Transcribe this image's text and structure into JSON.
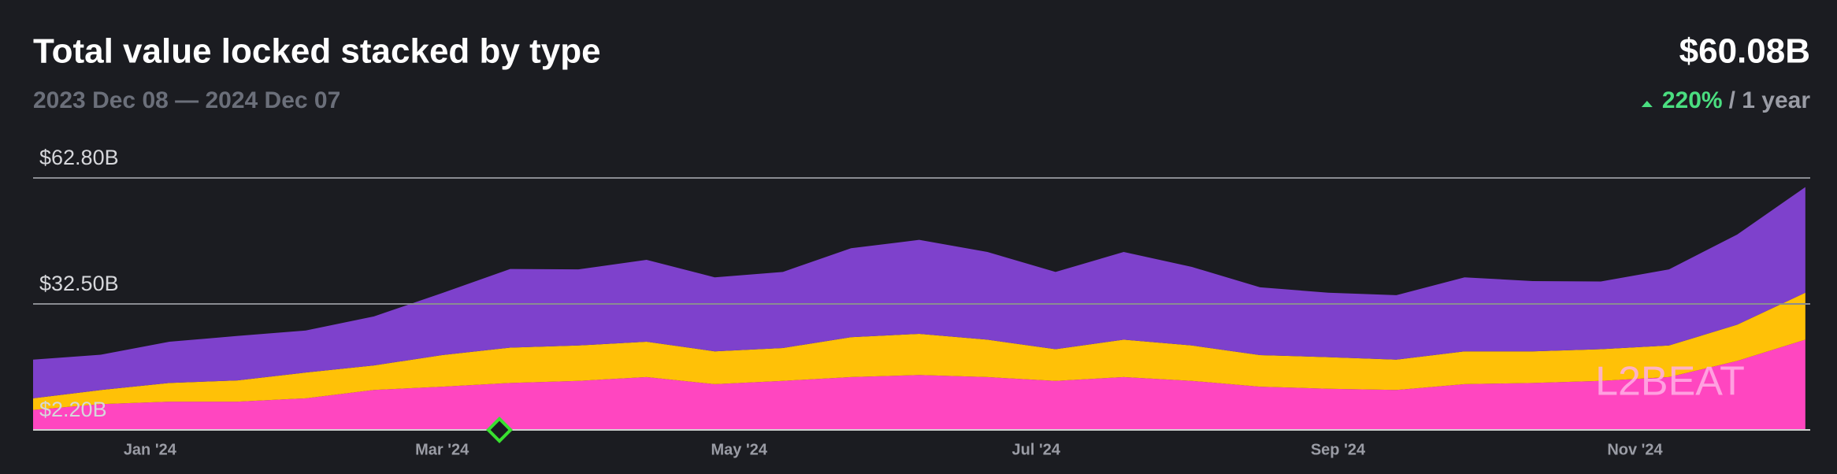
{
  "chart_data": {
    "type": "stacked_area",
    "title": "Total value locked stacked by type",
    "subtitle": "2023 Dec 08 — 2024 Dec 07",
    "total": "$60.08B",
    "change": "220%",
    "change_period": "/ 1 year",
    "watermark": "L2BEAT",
    "x": [
      "2023-12-08",
      "2023-12-22",
      "2024-01-05",
      "2024-01-19",
      "2024-02-02",
      "2024-02-16",
      "2024-03-01",
      "2024-03-15",
      "2024-03-29",
      "2024-04-12",
      "2024-04-26",
      "2024-05-10",
      "2024-05-24",
      "2024-06-07",
      "2024-06-21",
      "2024-07-05",
      "2024-07-19",
      "2024-08-02",
      "2024-08-16",
      "2024-08-30",
      "2024-09-13",
      "2024-09-27",
      "2024-10-11",
      "2024-10-25",
      "2024-11-08",
      "2024-11-22",
      "2024-12-06"
    ],
    "xlim": [
      "2023-12-08",
      "2024-12-07"
    ],
    "xticks": [
      {
        "value": "2024-01-01",
        "label": "Jan '24"
      },
      {
        "value": "2024-03-01",
        "label": "Mar '24"
      },
      {
        "value": "2024-05-01",
        "label": "May '24"
      },
      {
        "value": "2024-07-01",
        "label": "Jul '24"
      },
      {
        "value": "2024-09-01",
        "label": "Sep '24"
      },
      {
        "value": "2024-11-01",
        "label": "Nov '24"
      }
    ],
    "ylim": [
      2.2,
      62.8
    ],
    "yticks": [
      {
        "value": 2.2,
        "label": "$2.20B"
      },
      {
        "value": 32.5,
        "label": "$32.50B"
      },
      {
        "value": 62.8,
        "label": "$62.80B"
      }
    ],
    "grid": true,
    "series": [
      {
        "color": "#ff46c0",
        "values": [
          7.0,
          8.4,
          9.0,
          9.0,
          9.8,
          11.8,
          12.6,
          13.5,
          14.0,
          14.9,
          13.2,
          14.0,
          14.9,
          15.4,
          14.9,
          14.0,
          14.9,
          14.0,
          12.6,
          12.1,
          11.8,
          13.2,
          13.5,
          14.0,
          14.9,
          18.8,
          23.9
        ]
      },
      {
        "color": "#ffc107",
        "values": [
          2.8,
          3.4,
          4.5,
          5.1,
          6.2,
          5.9,
          7.6,
          8.5,
          8.5,
          8.5,
          7.9,
          7.9,
          9.6,
          9.9,
          9.0,
          7.6,
          9.0,
          8.5,
          7.6,
          7.6,
          7.3,
          7.9,
          7.6,
          7.6,
          7.6,
          8.7,
          11.3
        ]
      },
      {
        "color": "#7e41cc",
        "values": [
          9.3,
          8.5,
          9.9,
          10.7,
          10.1,
          11.8,
          14.9,
          18.9,
          18.3,
          19.7,
          17.8,
          18.3,
          21.4,
          22.6,
          21.1,
          18.6,
          21.1,
          18.9,
          16.3,
          15.5,
          15.5,
          17.8,
          16.9,
          16.3,
          18.3,
          21.7,
          25.4
        ]
      }
    ]
  }
}
